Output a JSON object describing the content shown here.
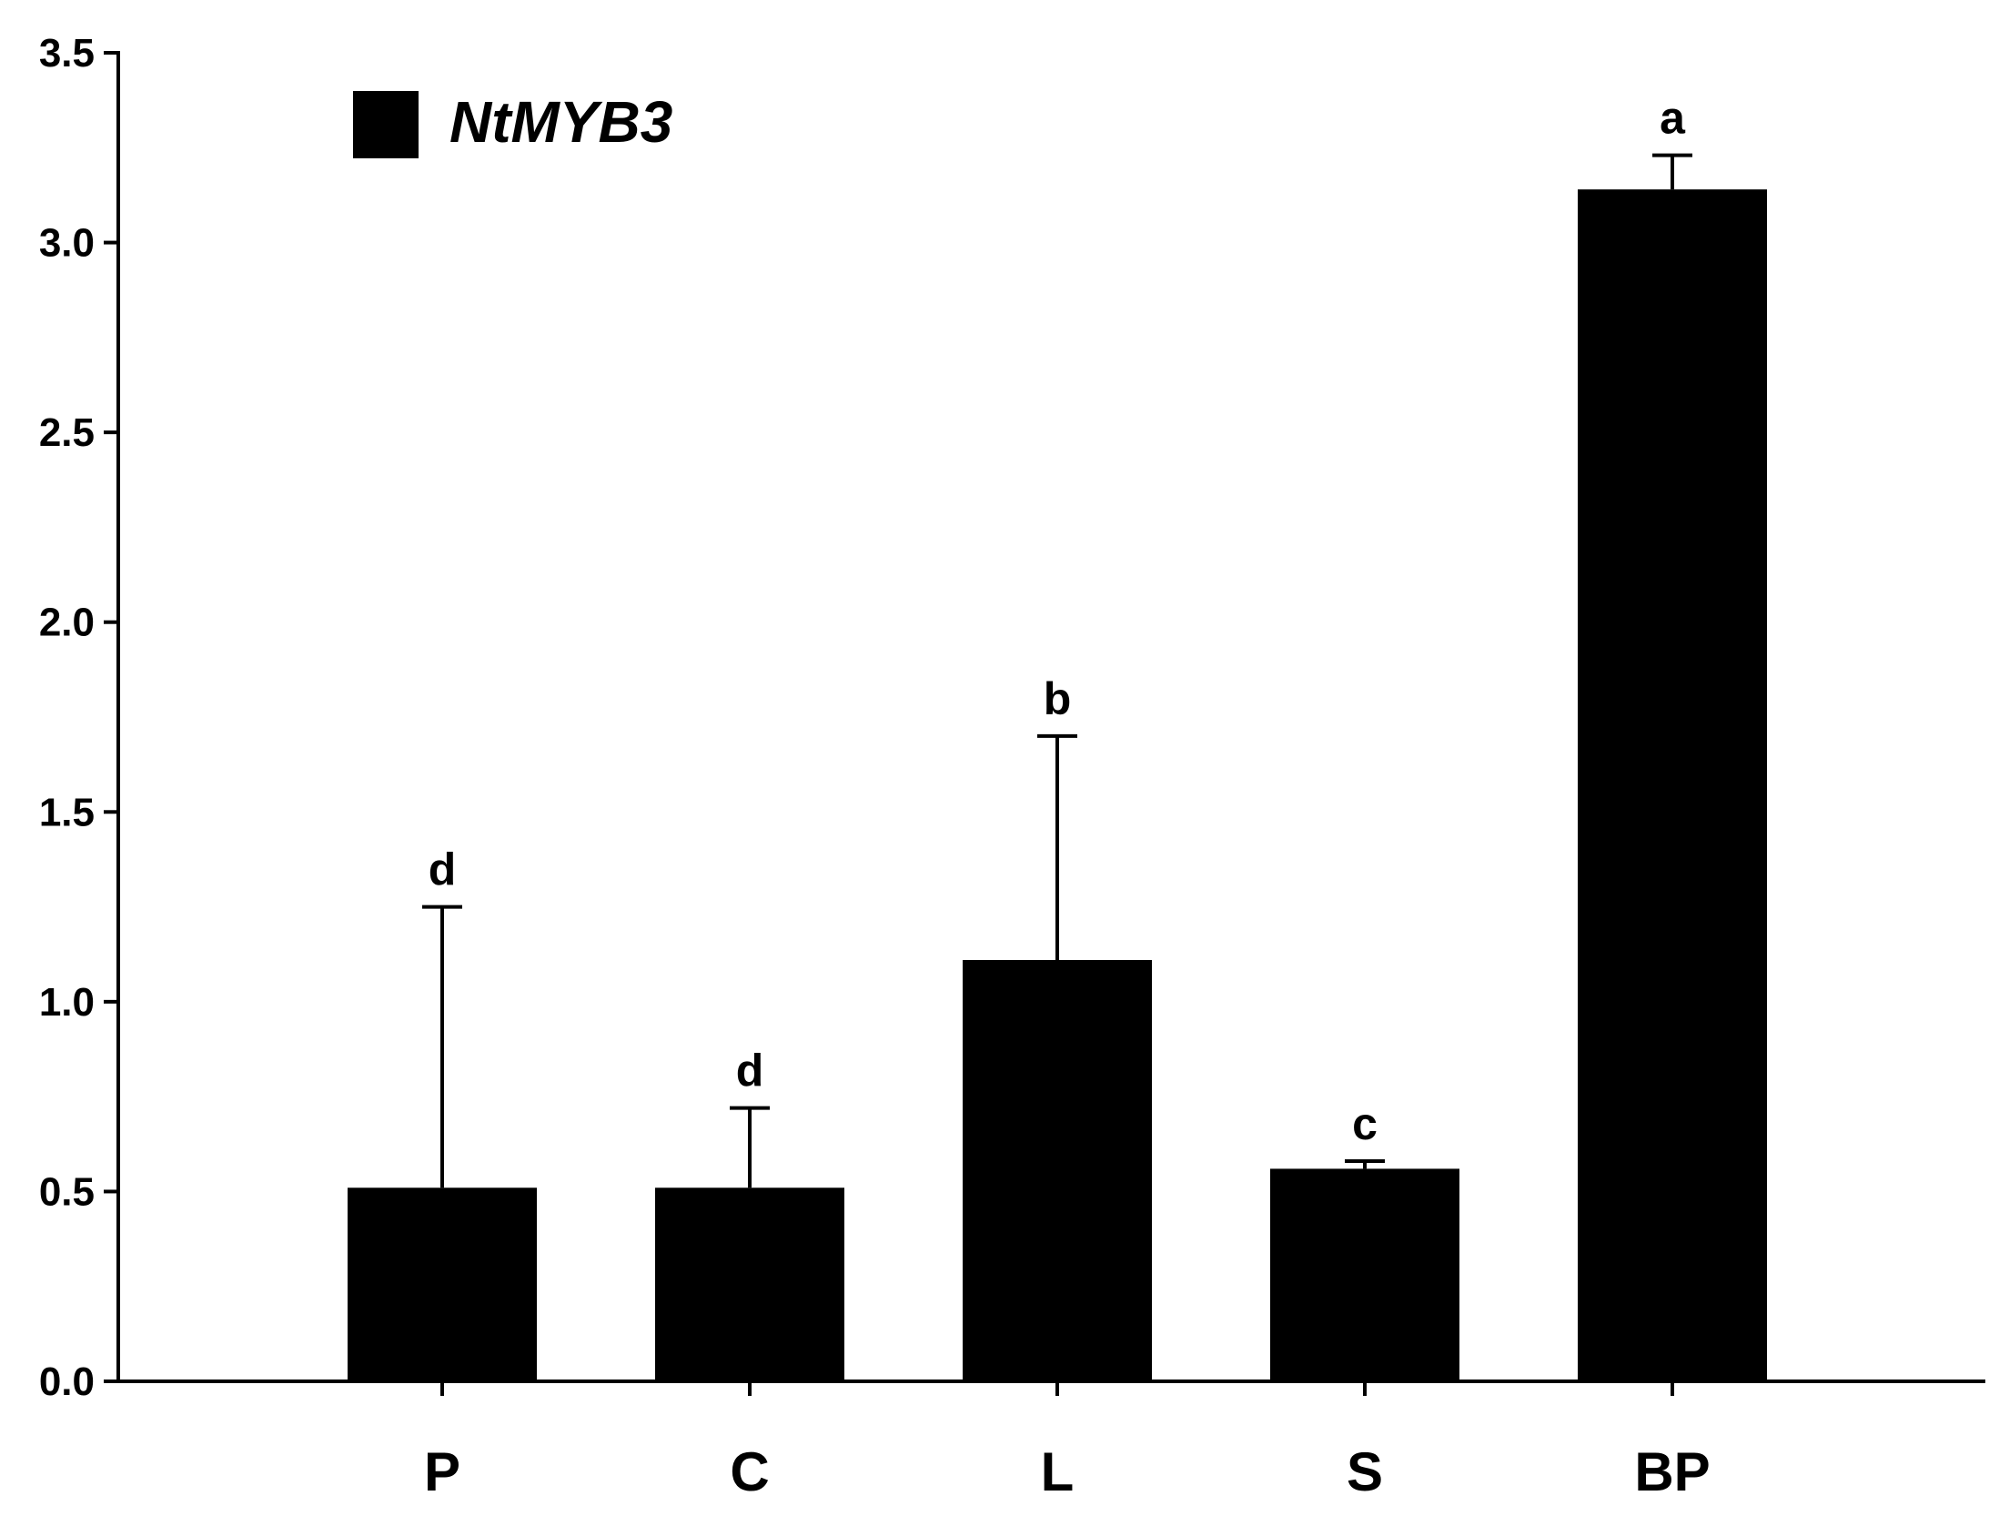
{
  "chart_data": {
    "type": "bar",
    "categories": [
      "P",
      "C",
      "L",
      "S",
      "BP"
    ],
    "series": [
      {
        "name": "NtMYB3",
        "values": [
          0.51,
          0.51,
          1.11,
          0.56,
          3.14
        ],
        "errors": [
          0.74,
          0.21,
          0.59,
          0.02,
          0.09
        ],
        "labels": [
          "d",
          "d",
          "b",
          "c",
          "a"
        ]
      }
    ],
    "yticks": [
      "0.0",
      "0.5",
      "1.0",
      "1.5",
      "2.0",
      "2.5",
      "3.0",
      "3.5"
    ],
    "ylim": [
      0,
      3.5
    ],
    "legend_position": "top-left",
    "bar_color": "#000000",
    "grid": false
  }
}
